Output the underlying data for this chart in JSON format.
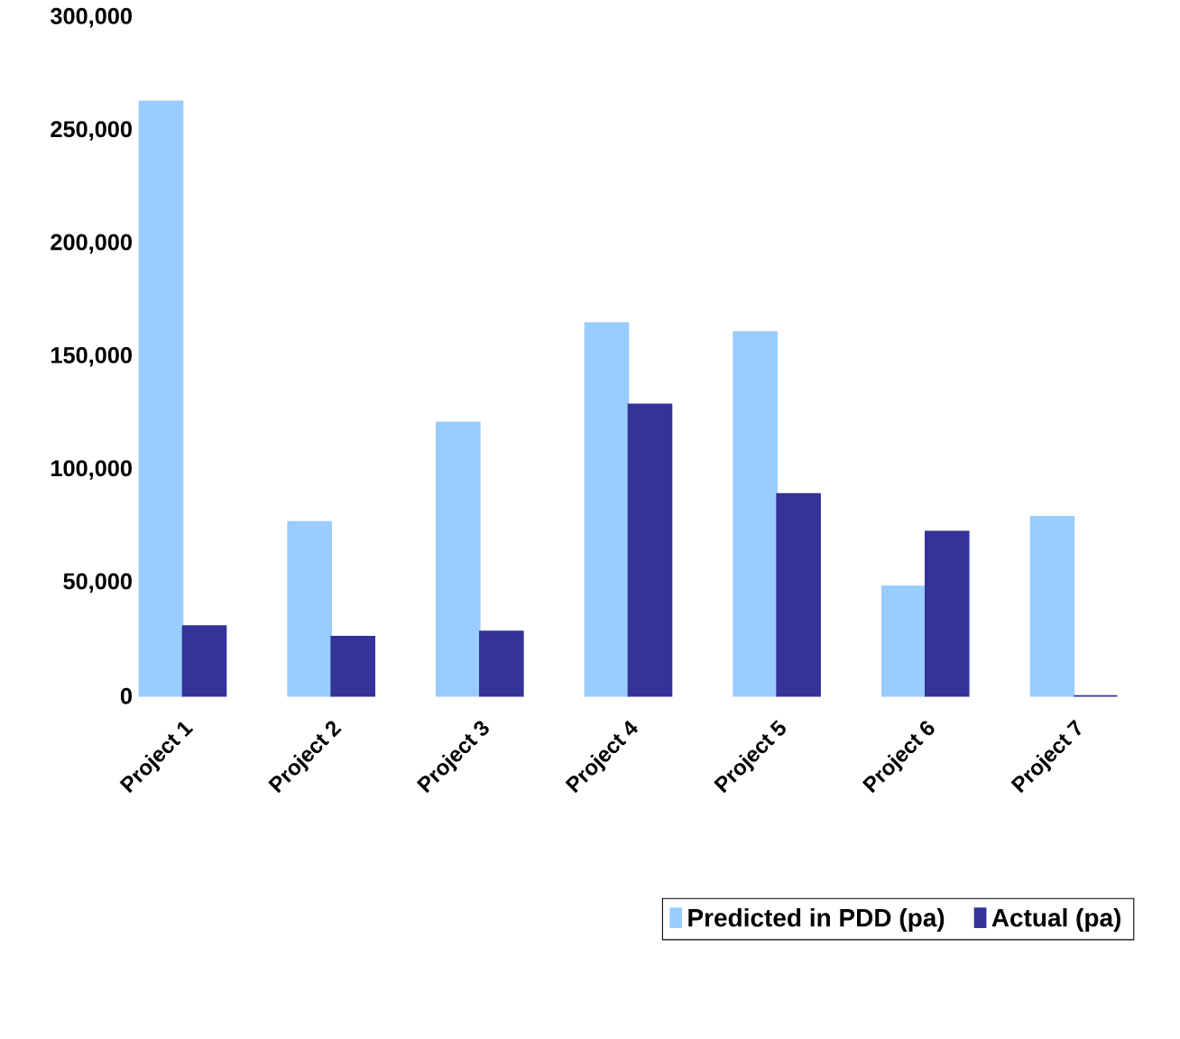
{
  "chart_data": {
    "type": "bar",
    "categories": [
      "Project 1",
      "Project 2",
      "Project 3",
      "Project 4",
      "Project 5",
      "Project 6",
      "Project 7"
    ],
    "series": [
      {
        "name": "Predicted in PDD  (pa)",
        "color": "#99ccff",
        "values": [
          263000,
          77000,
          121000,
          165000,
          161000,
          48500,
          79300
        ]
      },
      {
        "name": "Actual (pa)",
        "color": "#333399",
        "values": [
          31000,
          26300,
          28600,
          129000,
          89400,
          72700,
          0
        ]
      }
    ],
    "ylim": [
      0,
      300000
    ],
    "yticks": [
      {
        "value": 0,
        "label": "0"
      },
      {
        "value": 50000,
        "label": "50,000"
      },
      {
        "value": 100000,
        "label": "100,000"
      },
      {
        "value": 150000,
        "label": "150,000"
      },
      {
        "value": 200000,
        "label": "200,000"
      },
      {
        "value": 250000,
        "label": "250,000"
      },
      {
        "value": 300000,
        "label": "300,000"
      }
    ],
    "grid": false,
    "legend": "bottom"
  }
}
